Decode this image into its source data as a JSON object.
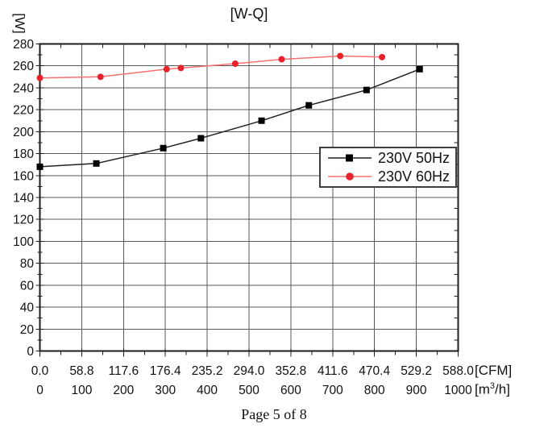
{
  "title": "[W-Q]",
  "footer": {
    "text": "Page 5 of 8"
  },
  "chart_data": {
    "type": "line",
    "title": "[W-Q]",
    "grid": true,
    "legend_position": "middle-right",
    "y_axis": {
      "unit": "[W]",
      "range": [
        0,
        280
      ],
      "major_step": 20,
      "minor_step": 10,
      "tick_labels": [
        "0",
        "20",
        "40",
        "60",
        "80",
        "100",
        "120",
        "140",
        "160",
        "180",
        "200",
        "220",
        "240",
        "260",
        "280"
      ]
    },
    "x_axis": {
      "range": [
        0,
        1000
      ],
      "major_step": 100,
      "minor_step": 50,
      "cfm_unit": "[CFM]",
      "m3h_unit": {
        "pre": "[m",
        "sup": "3",
        "post": "/h]"
      },
      "cfm_tick_labels": [
        "0.0",
        "58.8",
        "117.6",
        "176.4",
        "235.2",
        "294.0",
        "352.8",
        "411.6",
        "470.4",
        "529.2",
        "588.0"
      ],
      "m3h_tick_labels": [
        "0",
        "100",
        "200",
        "300",
        "400",
        "500",
        "600",
        "700",
        "800",
        "900",
        "1000"
      ]
    },
    "series": [
      {
        "name": "230V 50Hz",
        "line_color": "#222222",
        "marker": "square",
        "marker_color": "#000000",
        "points": [
          [
            0,
            168
          ],
          [
            135,
            171
          ],
          [
            295,
            185
          ],
          [
            385,
            194
          ],
          [
            530,
            210
          ],
          [
            643,
            224
          ],
          [
            781,
            238
          ],
          [
            908,
            257
          ]
        ]
      },
      {
        "name": "230V 60Hz",
        "line_color": "#f87070",
        "marker": "circle",
        "marker_color": "#e8222a",
        "points": [
          [
            0,
            249
          ],
          [
            145,
            250
          ],
          [
            303,
            257
          ],
          [
            337,
            258
          ],
          [
            467,
            262
          ],
          [
            578,
            266
          ],
          [
            718,
            269
          ],
          [
            818,
            268
          ]
        ]
      }
    ],
    "colors": {
      "grid": "#5a5a5a",
      "border": "#1c1c1c",
      "tick": "#1c1c1c",
      "text": "#111111",
      "legend_border": "#3f3f3f",
      "background": "#ffffff"
    }
  }
}
